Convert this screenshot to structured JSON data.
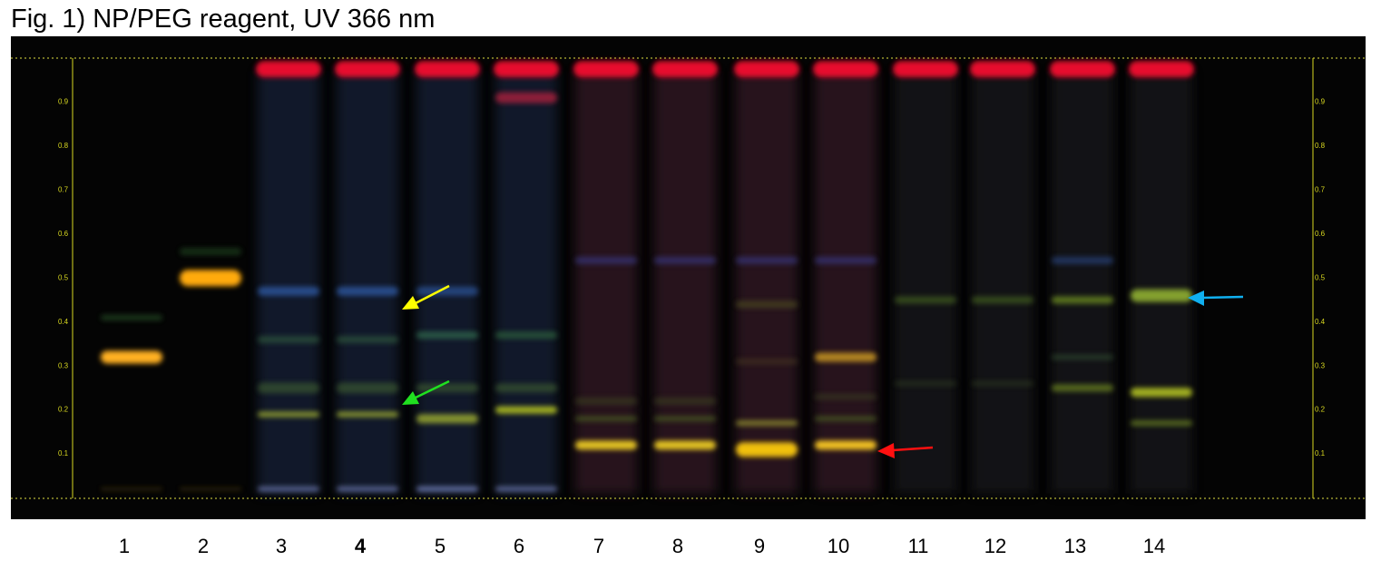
{
  "title": "Fig. 1) NP/PEG reagent, UV 366 nm",
  "rf_scale": [
    "0.1",
    "0.2",
    "0.3",
    "0.4",
    "0.5",
    "0.6",
    "0.7",
    "0.8",
    "0.9"
  ],
  "lanes": [
    "1",
    "2",
    "3",
    "4",
    "5",
    "6",
    "7",
    "8",
    "9",
    "10",
    "11",
    "12",
    "13",
    "14"
  ]
}
